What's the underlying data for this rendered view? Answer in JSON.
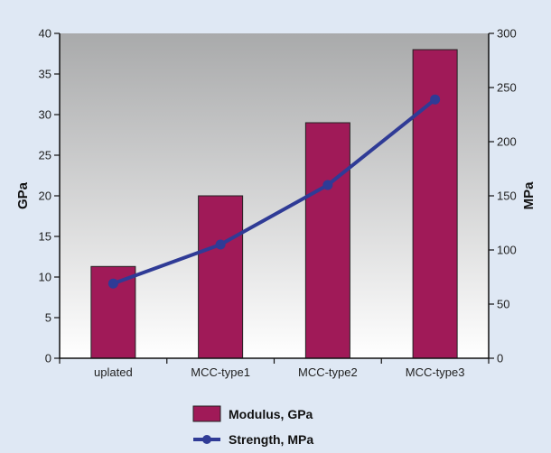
{
  "chart_data": {
    "type": "bar",
    "categories": [
      "uplated",
      "MCC-type1",
      "MCC-type2",
      "MCC-type3"
    ],
    "series": [
      {
        "name": "Modulus, GPa",
        "type": "bar",
        "axis": "left",
        "values": [
          11.3,
          20,
          29,
          38
        ],
        "color": "#a01a58"
      },
      {
        "name": "Strength, MPa",
        "type": "line",
        "axis": "right",
        "values": [
          69,
          105,
          160,
          239
        ],
        "color": "#2f3b96"
      }
    ],
    "ylabel": "GPa",
    "y2label": "MPa",
    "ylim": [
      0,
      40
    ],
    "y2lim": [
      0,
      300
    ],
    "yticks": [
      0,
      5,
      10,
      15,
      20,
      25,
      30,
      35,
      40
    ],
    "y2ticks": [
      0,
      50,
      100,
      150,
      200,
      250,
      300
    ],
    "grid": false,
    "legend_position": "bottom-center",
    "plot_background": "gradient gray to white",
    "page_background": "#dfe8f4"
  }
}
